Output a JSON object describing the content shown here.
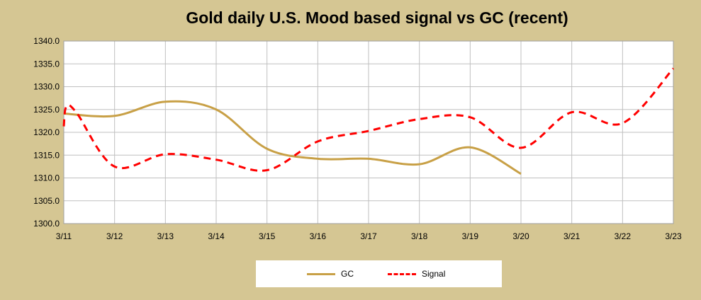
{
  "title": "Gold daily U.S. Mood based signal vs GC (recent)",
  "colors": {
    "background": "#D5C693",
    "plot_area": "#FFFFFF",
    "grid": "#BFBFBF",
    "gc": "#C8A046",
    "signal": "#FF0000"
  },
  "legend": {
    "gc_label": "GC",
    "signal_label": "Signal"
  },
  "chart_data": {
    "type": "line",
    "title": "Gold daily U.S. Mood based signal vs GC (recent)",
    "xlabel": "",
    "ylabel": "",
    "categories": [
      "3/11",
      "3/12",
      "3/13",
      "3/14",
      "3/15",
      "3/16",
      "3/17",
      "3/18",
      "3/19",
      "3/20",
      "3/21",
      "3/22",
      "3/23"
    ],
    "ylim": [
      1300,
      1340
    ],
    "yticks": [
      "1300.0",
      "1305.0",
      "1310.0",
      "1315.0",
      "1320.0",
      "1325.0",
      "1330.0",
      "1335.0",
      "1340.0"
    ],
    "grid": true,
    "legend_position": "bottom",
    "series": [
      {
        "name": "GC",
        "style": "solid",
        "color": "#C8A046",
        "x": [
          0,
          1,
          2,
          3,
          4,
          5,
          6,
          7,
          8,
          9
        ],
        "values": [
          1324.1,
          1323.6,
          1326.7,
          1325.0,
          1316.4,
          1314.2,
          1314.2,
          1313.0,
          1316.7,
          1310.9
        ]
      },
      {
        "name": "Signal",
        "style": "dashed",
        "color": "#FF0000",
        "x": [
          0,
          0.05,
          0.25,
          1,
          2,
          3,
          4,
          5,
          6,
          7,
          8,
          9,
          10,
          11,
          12
        ],
        "values": [
          1321.3,
          1325.6,
          1324.3,
          1312.5,
          1315.2,
          1314.0,
          1311.7,
          1318.0,
          1320.3,
          1322.9,
          1323.3,
          1316.6,
          1324.4,
          1322.0,
          1334.0
        ]
      }
    ]
  }
}
